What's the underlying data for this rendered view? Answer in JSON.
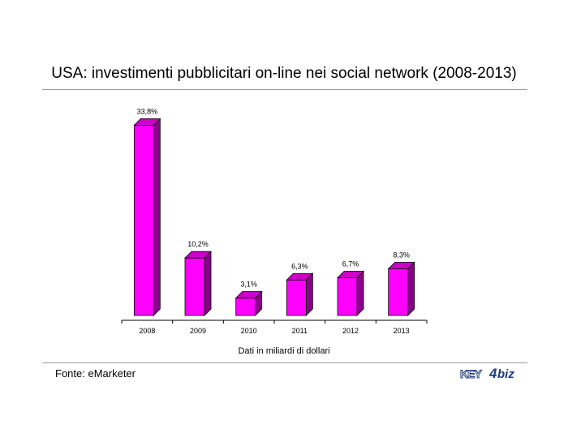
{
  "chart_data": {
    "type": "bar",
    "title": "USA: investimenti pubblicitari on-line nei social network (2008-2013)",
    "categories": [
      "2008",
      "2009",
      "2010",
      "2011",
      "2012",
      "2013"
    ],
    "values": [
      33.8,
      10.2,
      3.1,
      6.3,
      6.7,
      8.3
    ],
    "data_labels": [
      "33,8%",
      "10,2%",
      "3,1%",
      "6,3%",
      "6,7%",
      "8,3%"
    ],
    "xlabel": "Dati in miliardi di dollari",
    "ylabel": "",
    "ylim": [
      0,
      34
    ],
    "grid": false,
    "legend": "none",
    "bar_color": "#ff00ff",
    "bar_side_color": "#8a008a",
    "bar_top_color": "#cc00cc"
  },
  "footer": {
    "source": "Fonte: eMarketer",
    "logo": {
      "part1": "KEY",
      "part2": "4",
      "part3": "biz"
    }
  },
  "colors": {
    "rule": "#9a9a9a",
    "logo": "#1f3c7a"
  }
}
